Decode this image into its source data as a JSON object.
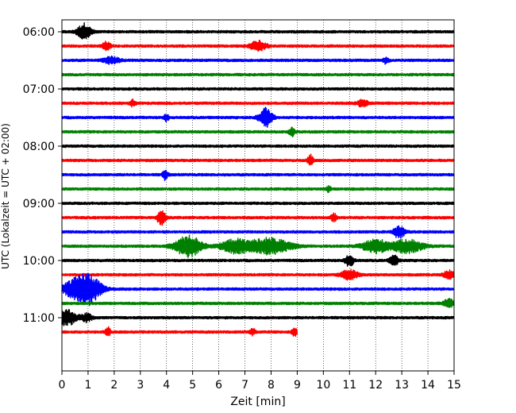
{
  "chart_data": {
    "type": "line",
    "title": "",
    "xlabel": "Zeit  [min]",
    "ylabel": "UTC (Lokalzeit = UTC + 02:00)",
    "xlim": [
      0,
      15
    ],
    "x_ticks": [
      "0",
      "1",
      "2",
      "3",
      "4",
      "5",
      "6",
      "7",
      "8",
      "9",
      "10",
      "11",
      "12",
      "13",
      "14",
      "15"
    ],
    "y_ticks": [
      {
        "label": "06:00",
        "trace_index": 0
      },
      {
        "label": "07:00",
        "trace_index": 4
      },
      {
        "label": "08:00",
        "trace_index": 8
      },
      {
        "label": "09:00",
        "trace_index": 12
      },
      {
        "label": "10:00",
        "trace_index": 16
      },
      {
        "label": "11:00",
        "trace_index": 20
      }
    ],
    "vertical_grid": true,
    "grid_style": "dotted",
    "colors": [
      "#000000",
      "#ff0000",
      "#0000ff",
      "#008000"
    ],
    "traces_total": 22,
    "last_trace_end_min": 9.0,
    "events": [
      {
        "trace": 0,
        "t": 0.85,
        "amp": 1.0,
        "dur": 0.25
      },
      {
        "trace": 1,
        "t": 1.7,
        "amp": 0.5,
        "dur": 0.15
      },
      {
        "trace": 1,
        "t": 7.5,
        "amp": 0.6,
        "dur": 0.3
      },
      {
        "trace": 2,
        "t": 1.9,
        "amp": 0.4,
        "dur": 0.3
      },
      {
        "trace": 2,
        "t": 12.4,
        "amp": 0.4,
        "dur": 0.1
      },
      {
        "trace": 5,
        "t": 2.7,
        "amp": 0.4,
        "dur": 0.1
      },
      {
        "trace": 5,
        "t": 11.5,
        "amp": 0.4,
        "dur": 0.2
      },
      {
        "trace": 6,
        "t": 4.0,
        "amp": 0.4,
        "dur": 0.1
      },
      {
        "trace": 6,
        "t": 7.8,
        "amp": 1.2,
        "dur": 0.25
      },
      {
        "trace": 7,
        "t": 8.8,
        "amp": 0.5,
        "dur": 0.1
      },
      {
        "trace": 9,
        "t": 9.5,
        "amp": 0.7,
        "dur": 0.1
      },
      {
        "trace": 10,
        "t": 3.95,
        "amp": 0.6,
        "dur": 0.1
      },
      {
        "trace": 11,
        "t": 10.2,
        "amp": 0.3,
        "dur": 0.1
      },
      {
        "trace": 13,
        "t": 3.8,
        "amp": 1.0,
        "dur": 0.15
      },
      {
        "trace": 13,
        "t": 10.4,
        "amp": 0.5,
        "dur": 0.1
      },
      {
        "trace": 14,
        "t": 12.9,
        "amp": 0.8,
        "dur": 0.2
      },
      {
        "trace": 15,
        "t": 4.85,
        "amp": 1.3,
        "dur": 0.5
      },
      {
        "trace": 15,
        "t": 6.6,
        "amp": 0.8,
        "dur": 0.5
      },
      {
        "trace": 15,
        "t": 7.9,
        "amp": 1.0,
        "dur": 0.8
      },
      {
        "trace": 15,
        "t": 12.0,
        "amp": 0.8,
        "dur": 0.5
      },
      {
        "trace": 15,
        "t": 13.2,
        "amp": 0.8,
        "dur": 0.6
      },
      {
        "trace": 16,
        "t": 11.0,
        "amp": 0.8,
        "dur": 0.15
      },
      {
        "trace": 16,
        "t": 12.7,
        "amp": 0.7,
        "dur": 0.15
      },
      {
        "trace": 17,
        "t": 11.0,
        "amp": 0.6,
        "dur": 0.3
      },
      {
        "trace": 17,
        "t": 14.8,
        "amp": 0.5,
        "dur": 0.2
      },
      {
        "trace": 18,
        "t": 0.95,
        "amp": 2.0,
        "dur": 0.5
      },
      {
        "trace": 18,
        "t": 0.3,
        "amp": 0.7,
        "dur": 0.3
      },
      {
        "trace": 19,
        "t": 14.8,
        "amp": 0.5,
        "dur": 0.2
      },
      {
        "trace": 20,
        "t": 0.15,
        "amp": 1.0,
        "dur": 0.4
      },
      {
        "trace": 20,
        "t": 0.95,
        "amp": 0.5,
        "dur": 0.2
      },
      {
        "trace": 21,
        "t": 1.75,
        "amp": 0.6,
        "dur": 0.1
      },
      {
        "trace": 21,
        "t": 7.3,
        "amp": 0.4,
        "dur": 0.1
      },
      {
        "trace": 21,
        "t": 8.9,
        "amp": 0.5,
        "dur": 0.1
      }
    ]
  }
}
